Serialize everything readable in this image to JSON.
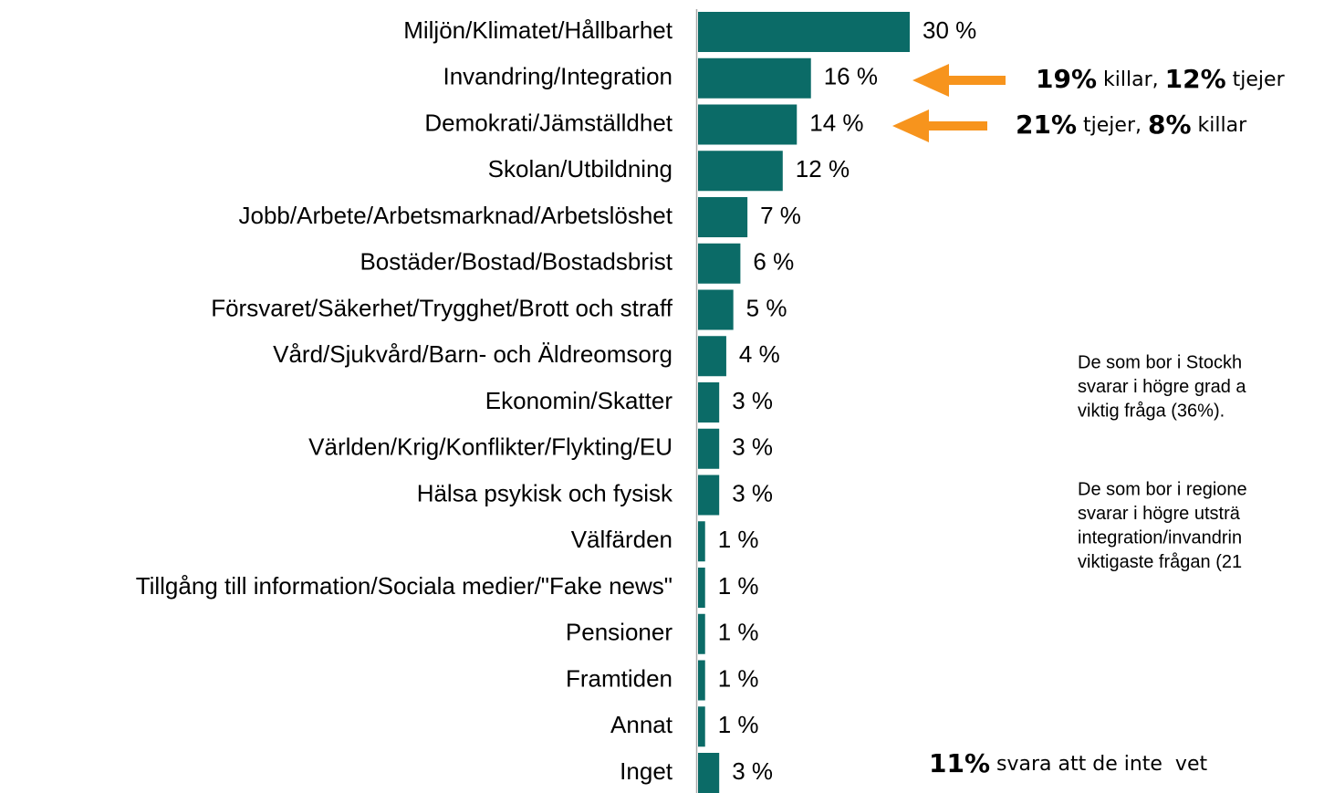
{
  "chart_data": {
    "type": "bar",
    "orientation": "horizontal",
    "categories": [
      "Miljön/Klimatet/Hållbarhet",
      "Invandring/Integration",
      "Demokrati/Jämställdhet",
      "Skolan/Utbildning",
      "Jobb/Arbete/Arbetsmarknad/Arbetslöshet",
      "Bostäder/Bostad/Bostadsbrist",
      "Försvaret/Säkerhet/Trygghet/Brott och straff",
      "Vård/Sjukvård/Barn- och Äldreomsorg",
      "Ekonomin/Skatter",
      "Världen/Krig/Konflikter/Flykting/EU",
      "Hälsa psykisk och fysisk",
      "Välfärden",
      "Tillgång till information/Sociala medier/\"Fake news\"",
      "Pensioner",
      "Framtiden",
      "Annat",
      "Inget"
    ],
    "values": [
      30,
      16,
      14,
      12,
      7,
      6,
      5,
      4,
      3,
      3,
      3,
      1,
      1,
      1,
      1,
      1,
      3
    ],
    "value_labels": [
      "30 %",
      "16 %",
      "14 %",
      "12 %",
      "7 %",
      "6 %",
      "5 %",
      "4 %",
      "3 %",
      "3 %",
      "3 %",
      "1 %",
      "1 %",
      "1 %",
      "1 %",
      "1 %",
      "3 %"
    ],
    "color": "#0b6b67",
    "xlim": [
      0,
      30
    ],
    "annotations": [
      {
        "parts": [
          {
            "text": "19%",
            "bold": true
          },
          {
            "text": " killar, "
          },
          {
            "text": "12%",
            "bold": true
          },
          {
            "text": " tjejer"
          }
        ]
      },
      {
        "parts": [
          {
            "text": "21%",
            "bold": true
          },
          {
            "text": " tjejer, "
          },
          {
            "text": "8%",
            "bold": true
          },
          {
            "text": " killar"
          }
        ]
      },
      {
        "parts": [
          {
            "text": "11%",
            "bold": true
          },
          {
            "text": " svara att de inte  vet"
          }
        ]
      }
    ],
    "notes": [
      [
        "De som bor i Stockh",
        "svarar i högre grad a",
        "viktig fråga (36%)."
      ],
      [
        "De som bor i regione",
        "svarar i högre utsträ",
        "integration/invandrin",
        "viktigaste frågan (21"
      ]
    ]
  }
}
